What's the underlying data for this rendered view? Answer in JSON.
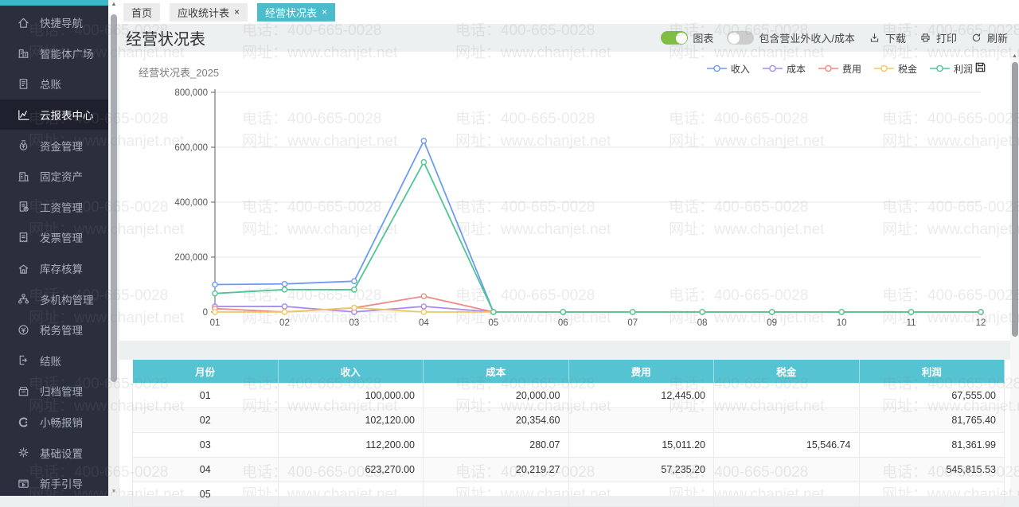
{
  "watermark": {
    "phone": "电话：400-665-0028",
    "site": "网址：www.chanjet.net"
  },
  "sidebar": {
    "items": [
      {
        "key": "quick-nav",
        "icon": "home-icon",
        "label": "快捷导航",
        "active": false
      },
      {
        "key": "agent-plaza",
        "icon": "plaza-icon",
        "label": "智能体广场",
        "active": false
      },
      {
        "key": "general-ledger",
        "icon": "ledger-icon",
        "label": "总账",
        "active": false
      },
      {
        "key": "cloud-report-center",
        "icon": "report-center-icon",
        "label": "云报表中心",
        "active": true
      },
      {
        "key": "fund-mgmt",
        "icon": "fund-icon",
        "label": "资金管理",
        "active": false
      },
      {
        "key": "fixed-assets",
        "icon": "fixed-asset-icon",
        "label": "固定资产",
        "active": false
      },
      {
        "key": "payroll-mgmt",
        "icon": "payroll-icon",
        "label": "工资管理",
        "active": false
      },
      {
        "key": "invoice-mgmt",
        "icon": "invoice-icon",
        "label": "发票管理",
        "active": false
      },
      {
        "key": "inventory",
        "icon": "inventory-icon",
        "label": "库存核算",
        "active": false
      },
      {
        "key": "multi-org",
        "icon": "multi-org-icon",
        "label": "多机构管理",
        "active": false
      },
      {
        "key": "tax-mgmt",
        "icon": "tax-icon",
        "label": "税务管理",
        "active": false
      },
      {
        "key": "closing",
        "icon": "closing-icon",
        "label": "结账",
        "active": false
      },
      {
        "key": "archive-mgmt",
        "icon": "archive-icon",
        "label": "归档管理",
        "active": false
      },
      {
        "key": "reimburse",
        "icon": "reimburse-icon",
        "label": "小畅报销",
        "active": false
      },
      {
        "key": "basic-settings",
        "icon": "settings-icon",
        "label": "基础设置",
        "active": false
      },
      {
        "key": "beginner-guide",
        "icon": "guide-icon",
        "label": "新手引导",
        "active": false
      }
    ]
  },
  "tabs": [
    {
      "key": "home",
      "label": "首页",
      "closable": false,
      "active": false
    },
    {
      "key": "receivable-report",
      "label": "应收统计表",
      "closable": true,
      "active": false
    },
    {
      "key": "operating-report",
      "label": "经营状况表",
      "closable": true,
      "active": true
    }
  ],
  "header": {
    "title": "经营状况表",
    "chart_toggle": {
      "label": "图表",
      "on": true
    },
    "include_toggle": {
      "label": "包含营业外收入/成本",
      "on": false
    },
    "download_label": "下载",
    "print_label": "打印",
    "refresh_label": "刷新"
  },
  "chart_data": {
    "type": "line",
    "title": "经营状况表_2025",
    "categories": [
      "01",
      "02",
      "03",
      "04",
      "05",
      "06",
      "07",
      "08",
      "09",
      "10",
      "11",
      "12"
    ],
    "series": [
      {
        "name": "收入",
        "color": "#6e9bf2",
        "values": [
          100000,
          102120,
          112200,
          623270,
          0,
          0,
          0,
          0,
          0,
          0,
          0,
          0
        ]
      },
      {
        "name": "成本",
        "color": "#a78bf0",
        "values": [
          20000,
          20354.6,
          280.07,
          20219.27,
          0,
          0,
          0,
          0,
          0,
          0,
          0,
          0
        ]
      },
      {
        "name": "费用",
        "color": "#f08a84",
        "values": [
          12445,
          0,
          15011.2,
          57235.2,
          0,
          0,
          0,
          0,
          0,
          0,
          0,
          0
        ]
      },
      {
        "name": "税金",
        "color": "#f0c763",
        "values": [
          0,
          0,
          15546.74,
          0,
          0,
          0,
          0,
          0,
          0,
          0,
          0,
          0
        ]
      },
      {
        "name": "利润",
        "color": "#4fc693",
        "values": [
          67555,
          81765.4,
          81361.99,
          545815.53,
          0,
          0,
          0,
          0,
          0,
          0,
          0,
          0
        ]
      }
    ],
    "ylim": [
      0,
      800000
    ],
    "yticks": [
      0,
      200000,
      400000,
      600000,
      800000
    ],
    "grid": "horizontal",
    "legend_position": "top-right"
  },
  "table": {
    "columns": [
      "月份",
      "收入",
      "成本",
      "费用",
      "税金",
      "利润"
    ],
    "rows": [
      {
        "month": "01",
        "values": [
          "100,000.00",
          "20,000.00",
          "12,445.00",
          "",
          "67,555.00"
        ]
      },
      {
        "month": "02",
        "values": [
          "102,120.00",
          "20,354.60",
          "",
          "",
          "81,765.40"
        ]
      },
      {
        "month": "03",
        "values": [
          "112,200.00",
          "280.07",
          "15,011.20",
          "15,546.74",
          "81,361.99"
        ]
      },
      {
        "month": "04",
        "values": [
          "623,270.00",
          "20,219.27",
          "57,235.20",
          "",
          "545,815.53"
        ]
      },
      {
        "month": "05",
        "values": [
          "",
          "",
          "",
          "",
          ""
        ]
      }
    ]
  },
  "colors": {
    "accent": "#4cbccd",
    "table_header": "#56c3d3",
    "toggle_on": "#7fbe42",
    "sidebar_bg": "#2b2f3d",
    "sidebar_active_bg": "#1e212d",
    "brand_strip": "#3cb9c8"
  }
}
